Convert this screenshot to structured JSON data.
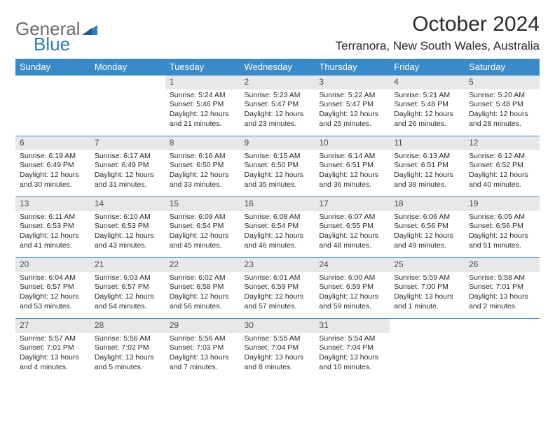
{
  "logo": {
    "word1": "General",
    "word2": "Blue"
  },
  "title": "October 2024",
  "location": "Terranora, New South Wales, Australia",
  "colors": {
    "header_bg": "#3a8ac9",
    "header_text": "#ffffff",
    "daynum_bg": "#e8e8e8",
    "border": "#3a8ac9",
    "logo_gray": "#6b6b6b",
    "logo_blue": "#2d7bc0",
    "text": "#2b2b2b"
  },
  "day_names": [
    "Sunday",
    "Monday",
    "Tuesday",
    "Wednesday",
    "Thursday",
    "Friday",
    "Saturday"
  ],
  "weeks": [
    [
      null,
      null,
      {
        "n": "1",
        "sr": "Sunrise: 5:24 AM",
        "ss": "Sunset: 5:46 PM",
        "dl": "Daylight: 12 hours and 21 minutes."
      },
      {
        "n": "2",
        "sr": "Sunrise: 5:23 AM",
        "ss": "Sunset: 5:47 PM",
        "dl": "Daylight: 12 hours and 23 minutes."
      },
      {
        "n": "3",
        "sr": "Sunrise: 5:22 AM",
        "ss": "Sunset: 5:47 PM",
        "dl": "Daylight: 12 hours and 25 minutes."
      },
      {
        "n": "4",
        "sr": "Sunrise: 5:21 AM",
        "ss": "Sunset: 5:48 PM",
        "dl": "Daylight: 12 hours and 26 minutes."
      },
      {
        "n": "5",
        "sr": "Sunrise: 5:20 AM",
        "ss": "Sunset: 5:48 PM",
        "dl": "Daylight: 12 hours and 28 minutes."
      }
    ],
    [
      {
        "n": "6",
        "sr": "Sunrise: 6:19 AM",
        "ss": "Sunset: 6:49 PM",
        "dl": "Daylight: 12 hours and 30 minutes."
      },
      {
        "n": "7",
        "sr": "Sunrise: 6:17 AM",
        "ss": "Sunset: 6:49 PM",
        "dl": "Daylight: 12 hours and 31 minutes."
      },
      {
        "n": "8",
        "sr": "Sunrise: 6:16 AM",
        "ss": "Sunset: 6:50 PM",
        "dl": "Daylight: 12 hours and 33 minutes."
      },
      {
        "n": "9",
        "sr": "Sunrise: 6:15 AM",
        "ss": "Sunset: 6:50 PM",
        "dl": "Daylight: 12 hours and 35 minutes."
      },
      {
        "n": "10",
        "sr": "Sunrise: 6:14 AM",
        "ss": "Sunset: 6:51 PM",
        "dl": "Daylight: 12 hours and 36 minutes."
      },
      {
        "n": "11",
        "sr": "Sunrise: 6:13 AM",
        "ss": "Sunset: 6:51 PM",
        "dl": "Daylight: 12 hours and 38 minutes."
      },
      {
        "n": "12",
        "sr": "Sunrise: 6:12 AM",
        "ss": "Sunset: 6:52 PM",
        "dl": "Daylight: 12 hours and 40 minutes."
      }
    ],
    [
      {
        "n": "13",
        "sr": "Sunrise: 6:11 AM",
        "ss": "Sunset: 6:53 PM",
        "dl": "Daylight: 12 hours and 41 minutes."
      },
      {
        "n": "14",
        "sr": "Sunrise: 6:10 AM",
        "ss": "Sunset: 6:53 PM",
        "dl": "Daylight: 12 hours and 43 minutes."
      },
      {
        "n": "15",
        "sr": "Sunrise: 6:09 AM",
        "ss": "Sunset: 6:54 PM",
        "dl": "Daylight: 12 hours and 45 minutes."
      },
      {
        "n": "16",
        "sr": "Sunrise: 6:08 AM",
        "ss": "Sunset: 6:54 PM",
        "dl": "Daylight: 12 hours and 46 minutes."
      },
      {
        "n": "17",
        "sr": "Sunrise: 6:07 AM",
        "ss": "Sunset: 6:55 PM",
        "dl": "Daylight: 12 hours and 48 minutes."
      },
      {
        "n": "18",
        "sr": "Sunrise: 6:06 AM",
        "ss": "Sunset: 6:56 PM",
        "dl": "Daylight: 12 hours and 49 minutes."
      },
      {
        "n": "19",
        "sr": "Sunrise: 6:05 AM",
        "ss": "Sunset: 6:56 PM",
        "dl": "Daylight: 12 hours and 51 minutes."
      }
    ],
    [
      {
        "n": "20",
        "sr": "Sunrise: 6:04 AM",
        "ss": "Sunset: 6:57 PM",
        "dl": "Daylight: 12 hours and 53 minutes."
      },
      {
        "n": "21",
        "sr": "Sunrise: 6:03 AM",
        "ss": "Sunset: 6:57 PM",
        "dl": "Daylight: 12 hours and 54 minutes."
      },
      {
        "n": "22",
        "sr": "Sunrise: 6:02 AM",
        "ss": "Sunset: 6:58 PM",
        "dl": "Daylight: 12 hours and 56 minutes."
      },
      {
        "n": "23",
        "sr": "Sunrise: 6:01 AM",
        "ss": "Sunset: 6:59 PM",
        "dl": "Daylight: 12 hours and 57 minutes."
      },
      {
        "n": "24",
        "sr": "Sunrise: 6:00 AM",
        "ss": "Sunset: 6:59 PM",
        "dl": "Daylight: 12 hours and 59 minutes."
      },
      {
        "n": "25",
        "sr": "Sunrise: 5:59 AM",
        "ss": "Sunset: 7:00 PM",
        "dl": "Daylight: 13 hours and 1 minute."
      },
      {
        "n": "26",
        "sr": "Sunrise: 5:58 AM",
        "ss": "Sunset: 7:01 PM",
        "dl": "Daylight: 13 hours and 2 minutes."
      }
    ],
    [
      {
        "n": "27",
        "sr": "Sunrise: 5:57 AM",
        "ss": "Sunset: 7:01 PM",
        "dl": "Daylight: 13 hours and 4 minutes."
      },
      {
        "n": "28",
        "sr": "Sunrise: 5:56 AM",
        "ss": "Sunset: 7:02 PM",
        "dl": "Daylight: 13 hours and 5 minutes."
      },
      {
        "n": "29",
        "sr": "Sunrise: 5:56 AM",
        "ss": "Sunset: 7:03 PM",
        "dl": "Daylight: 13 hours and 7 minutes."
      },
      {
        "n": "30",
        "sr": "Sunrise: 5:55 AM",
        "ss": "Sunset: 7:04 PM",
        "dl": "Daylight: 13 hours and 8 minutes."
      },
      {
        "n": "31",
        "sr": "Sunrise: 5:54 AM",
        "ss": "Sunset: 7:04 PM",
        "dl": "Daylight: 13 hours and 10 minutes."
      },
      null,
      null
    ]
  ]
}
